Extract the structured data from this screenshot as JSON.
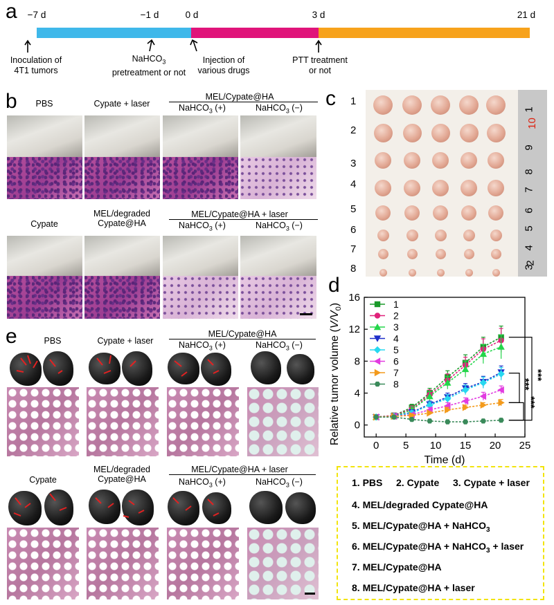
{
  "panels": {
    "a": "a",
    "b": "b",
    "c": "c",
    "d": "d",
    "e": "e"
  },
  "timeline": {
    "ticks": [
      "−7 d",
      "−1 d",
      "0 d",
      "3 d",
      "21 d"
    ],
    "events": [
      {
        "line1": "Inoculation of",
        "line2": "4T1 tumors"
      },
      {
        "line1": "NaHCO",
        "sub": "3",
        "line2": "pretreatment or not"
      },
      {
        "line1": "Injection of",
        "line2": "various drugs"
      },
      {
        "line1": "PTT treatment",
        "line2": "or not"
      }
    ],
    "colors": {
      "phase1": "#3fb8ea",
      "phase2": "#e0147a",
      "phase3": "#f7a21b"
    }
  },
  "panel_b": {
    "row1": {
      "pbs": "PBS",
      "cypate_laser": "Cypate + laser",
      "group": "MEL/Cypate@HA",
      "pos": "NaHCO",
      "pos_sub": "3",
      "pos_suffix": " (+)",
      "neg": "NaHCO",
      "neg_sub": "3",
      "neg_suffix": " (−)"
    },
    "row2": {
      "cypate": "Cypate",
      "mel_deg1": "MEL/degraded",
      "mel_deg2": "Cypate@HA",
      "group": "MEL/Cypate@HA + laser",
      "pos": "NaHCO",
      "pos_sub": "3",
      "pos_suffix": " (+)",
      "neg": "NaHCO",
      "neg_sub": "3",
      "neg_suffix": " (−)"
    }
  },
  "panel_c": {
    "row_labels": [
      "1",
      "2",
      "3",
      "4",
      "5",
      "6",
      "7",
      "8"
    ],
    "ruler_numbers": [
      "1",
      "10",
      "9",
      "8",
      "7",
      "6",
      "5",
      "4",
      "3",
      "2"
    ]
  },
  "panel_e": {
    "row1": {
      "pbs": "PBS",
      "cypate_laser": "Cypate + laser",
      "group": "MEL/Cypate@HA",
      "pos": "NaHCO",
      "pos_sub": "3",
      "pos_suffix": " (+)",
      "neg": "NaHCO",
      "neg_sub": "3",
      "neg_suffix": " (−)"
    },
    "row2": {
      "cypate": "Cypate",
      "mel_deg1": "MEL/degraded",
      "mel_deg2": "Cypate@HA",
      "group": "MEL/Cypate@HA + laser",
      "pos": "NaHCO",
      "pos_sub": "3",
      "pos_suffix": " (+)",
      "neg": "NaHCO",
      "neg_sub": "3",
      "neg_suffix": " (−)"
    }
  },
  "legend_box": {
    "line1": [
      "1. PBS",
      "2. Cypate",
      "3. Cypate + laser"
    ],
    "line2": "4. MEL/degraded Cypate@HA",
    "line3": {
      "text": "5. MEL/Cypate@HA + NaHCO",
      "sub": "3"
    },
    "line4": {
      "text": "6. MEL/Cypate@HA + NaHCO",
      "sub": "3",
      "suffix": " + laser"
    },
    "line5": "7. MEL/Cypate@HA",
    "line6": "8. MEL/Cypate@HA + laser"
  },
  "chart_data": {
    "type": "line",
    "xlabel": "Time (d)",
    "ylabel_prefix": "Relative tumor volume (",
    "ylabel_var": "V/V",
    "ylabel_sub": "0",
    "ylabel_suffix": ")",
    "xlim": [
      -2,
      25
    ],
    "ylim": [
      -1.5,
      16
    ],
    "xticks": [
      0,
      5,
      10,
      15,
      20,
      25
    ],
    "yticks": [
      0,
      4,
      8,
      12,
      16
    ],
    "x": [
      0,
      3,
      6,
      9,
      12,
      15,
      18,
      21
    ],
    "significance": [
      "***",
      "***",
      "***"
    ],
    "series": [
      {
        "name": "1",
        "color": "#1a9a2a",
        "marker": "square",
        "values": [
          1,
          1.2,
          2.2,
          4.0,
          6.0,
          7.8,
          9.8,
          11.0
        ],
        "err": [
          0,
          0.2,
          0.4,
          0.6,
          0.8,
          1.0,
          1.2,
          1.4
        ]
      },
      {
        "name": "2",
        "color": "#e0227a",
        "marker": "circle",
        "values": [
          1,
          1.2,
          2.0,
          3.8,
          5.6,
          7.5,
          9.5,
          10.6
        ],
        "err": [
          0,
          0.2,
          0.4,
          0.6,
          0.8,
          1.0,
          1.3,
          1.5
        ]
      },
      {
        "name": "3",
        "color": "#23d64a",
        "marker": "triangle-up",
        "values": [
          1,
          1.1,
          1.9,
          3.6,
          5.3,
          7.0,
          8.9,
          9.8
        ],
        "err": [
          0,
          0.2,
          0.4,
          0.6,
          0.8,
          1.0,
          1.2,
          1.5
        ]
      },
      {
        "name": "4",
        "color": "#1f2fc9",
        "marker": "triangle-down",
        "values": [
          1,
          1.1,
          1.6,
          2.6,
          3.5,
          4.6,
          5.4,
          6.6
        ],
        "err": [
          0,
          0.2,
          0.3,
          0.4,
          0.5,
          0.6,
          0.7,
          0.8
        ]
      },
      {
        "name": "5",
        "color": "#27d8f0",
        "marker": "diamond",
        "values": [
          1,
          1.1,
          1.5,
          2.5,
          3.3,
          4.4,
          5.3,
          6.4
        ],
        "err": [
          0,
          0.2,
          0.3,
          0.4,
          0.5,
          0.6,
          0.7,
          0.8
        ]
      },
      {
        "name": "6",
        "color": "#e23be0",
        "marker": "triangle-left",
        "values": [
          1,
          1.1,
          1.3,
          1.9,
          2.4,
          3.0,
          3.6,
          4.4
        ],
        "err": [
          0,
          0.1,
          0.2,
          0.3,
          0.4,
          0.4,
          0.5,
          0.5
        ]
      },
      {
        "name": "7",
        "color": "#f39a1c",
        "marker": "triangle-right",
        "values": [
          1,
          1.1,
          1.2,
          1.5,
          1.9,
          2.2,
          2.5,
          2.8
        ],
        "err": [
          0,
          0.1,
          0.2,
          0.2,
          0.3,
          0.3,
          0.3,
          0.4
        ]
      },
      {
        "name": "8",
        "color": "#3a8a5a",
        "marker": "hexagon",
        "values": [
          1,
          1.0,
          0.7,
          0.5,
          0.4,
          0.4,
          0.5,
          0.6
        ],
        "err": [
          0,
          0.1,
          0.1,
          0.1,
          0.1,
          0.1,
          0.1,
          0.2
        ]
      }
    ]
  }
}
